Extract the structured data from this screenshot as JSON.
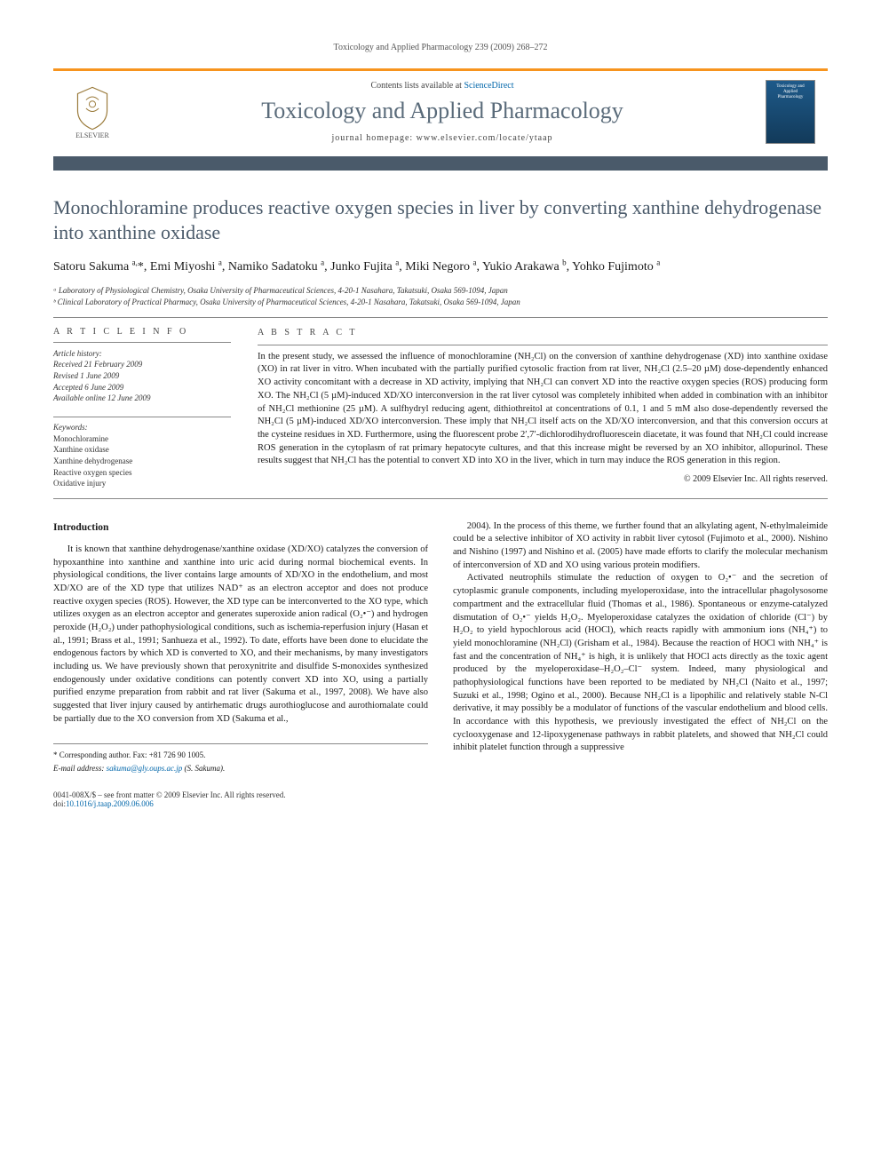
{
  "runningHeader": "Toxicology and Applied Pharmacology 239 (2009) 268–272",
  "masthead": {
    "contentsLine": "Contents lists available at ",
    "contentsLink": "ScienceDirect",
    "journalName": "Toxicology and Applied Pharmacology",
    "homepageLine": "journal homepage: www.elsevier.com/locate/ytaap",
    "publisherName": "ELSEVIER",
    "coverText": "Toxicology and Applied Pharmacology"
  },
  "article": {
    "title": "Monochloramine produces reactive oxygen species in liver by converting xanthine dehydrogenase into xanthine oxidase",
    "authorsHtml": "Satoru Sakuma <sup>a,</sup>*, Emi Miyoshi <sup>a</sup>, Namiko Sadatoku <sup>a</sup>, Junko Fujita <sup>a</sup>, Miki Negoro <sup>a</sup>, Yukio Arakawa <sup>b</sup>, Yohko Fujimoto <sup>a</sup>",
    "affiliations": [
      "ᵃ Laboratory of Physiological Chemistry, Osaka University of Pharmaceutical Sciences, 4-20-1 Nasahara, Takatsuki, Osaka 569-1094, Japan",
      "ᵇ Clinical Laboratory of Practical Pharmacy, Osaka University of Pharmaceutical Sciences, 4-20-1 Nasahara, Takatsuki, Osaka 569-1094, Japan"
    ]
  },
  "articleInfo": {
    "heading": "A R T I C L E   I N F O",
    "historyLabel": "Article history:",
    "history": [
      "Received 21 February 2009",
      "Revised 1 June 2009",
      "Accepted 6 June 2009",
      "Available online 12 June 2009"
    ],
    "keywordsLabel": "Keywords:",
    "keywords": [
      "Monochloramine",
      "Xanthine oxidase",
      "Xanthine dehydrogenase",
      "Reactive oxygen species",
      "Oxidative injury"
    ]
  },
  "abstract": {
    "heading": "A B S T R A C T",
    "text": "In the present study, we assessed the influence of monochloramine (NH₂Cl) on the conversion of xanthine dehydrogenase (XD) into xanthine oxidase (XO) in rat liver in vitro. When incubated with the partially purified cytosolic fraction from rat liver, NH₂Cl (2.5–20 µM) dose-dependently enhanced XO activity concomitant with a decrease in XD activity, implying that NH₂Cl can convert XD into the reactive oxygen species (ROS) producing form XO. The NH₂Cl (5 µM)-induced XD/XO interconversion in the rat liver cytosol was completely inhibited when added in combination with an inhibitor of NH₂Cl methionine (25 µM). A sulfhydryl reducing agent, dithiothreitol at concentrations of 0.1, 1 and 5 mM also dose-dependently reversed the NH₂Cl (5 µM)-induced XD/XO interconversion. These imply that NH₂Cl itself acts on the XD/XO interconversion, and that this conversion occurs at the cysteine residues in XD. Furthermore, using the fluorescent probe 2′,7′-dichlorodihydrofluorescein diacetate, it was found that NH₂Cl could increase ROS generation in the cytoplasm of rat primary hepatocyte cultures, and that this increase might be reversed by an XO inhibitor, allopurinol. These results suggest that NH₂Cl has the potential to convert XD into XO in the liver, which in turn may induce the ROS generation in this region.",
    "copyright": "© 2009 Elsevier Inc. All rights reserved."
  },
  "body": {
    "introductionHeading": "Introduction",
    "para1": "It is known that xanthine dehydrogenase/xanthine oxidase (XD/XO) catalyzes the conversion of hypoxanthine into xanthine and xanthine into uric acid during normal biochemical events. In physiological conditions, the liver contains large amounts of XD/XO in the endothelium, and most XD/XO are of the XD type that utilizes NAD⁺ as an electron acceptor and does not produce reactive oxygen species (ROS). However, the XD type can be interconverted to the XO type, which utilizes oxygen as an electron acceptor and generates superoxide anion radical (O₂•⁻) and hydrogen peroxide (H₂O₂) under pathophysiological conditions, such as ischemia-reperfusion injury (Hasan et al., 1991; Brass et al., 1991; Sanhueza et al., 1992). To date, efforts have been done to elucidate the endogenous factors by which XD is converted to XO, and their mechanisms, by many investigators including us. We have previously shown that peroxynitrite and disulfide S-monoxides synthesized endogenously under oxidative conditions can potently convert XD into XO, using a partially purified enzyme preparation from rabbit and rat liver (Sakuma et al., 1997, 2008). We have also suggested that liver injury caused by antirhematic drugs aurothioglucose and aurothiomalate could be partially due to the XO conversion from XD (Sakuma et al.,",
    "para2": "2004). In the process of this theme, we further found that an alkylating agent, N-ethylmaleimide could be a selective inhibitor of XO activity in rabbit liver cytosol (Fujimoto et al., 2000). Nishino and Nishino (1997) and Nishino et al. (2005) have made efforts to clarify the molecular mechanism of interconversion of XD and XO using various protein modifiers.",
    "para3": "Activated neutrophils stimulate the reduction of oxygen to O₂•⁻ and the secretion of cytoplasmic granule components, including myeloperoxidase, into the intracellular phagolysosome compartment and the extracellular fluid (Thomas et al., 1986). Spontaneous or enzyme-catalyzed dismutation of O₂•⁻ yields H₂O₂. Myeloperoxidase catalyzes the oxidation of chloride (Cl⁻) by H₂O₂ to yield hypochlorous acid (HOCl), which reacts rapidly with ammonium ions (NH₄⁺) to yield monochloramine (NH₂Cl) (Grisham et al., 1984). Because the reaction of HOCl with NH₄⁺ is fast and the concentration of NH₄⁺ is high, it is unlikely that HOCl acts directly as the toxic agent produced by the myeloperoxidase–H₂O₂–Cl⁻ system. Indeed, many physiological and pathophysiological functions have been reported to be mediated by NH₂Cl (Naito et al., 1997; Suzuki et al., 1998; Ogino et al., 2000). Because NH₂Cl is a lipophilic and relatively stable N-Cl derivative, it may possibly be a modulator of functions of the vascular endothelium and blood cells. In accordance with this hypothesis, we previously investigated the effect of NH₂Cl on the cyclooxygenase and 12-lipoxygenenase pathways in rabbit platelets, and showed that NH₂Cl could inhibit platelet function through a suppressive"
  },
  "footnote": {
    "corresponding": "* Corresponding author. Fax: +81 726 90 1005.",
    "emailLabel": "E-mail address: ",
    "email": "sakuma@gly.oups.ac.jp",
    "emailSuffix": " (S. Sakuma)."
  },
  "footer": {
    "left1": "0041-008X/$ – see front matter © 2009 Elsevier Inc. All rights reserved.",
    "left2prefix": "doi:",
    "doi": "10.1016/j.taap.2009.06.006"
  },
  "colors": {
    "accentOrange": "#f7941e",
    "bannerDark": "#4a5a6a",
    "linkBlue": "#0066aa",
    "headingGray": "#5a6b7a"
  }
}
